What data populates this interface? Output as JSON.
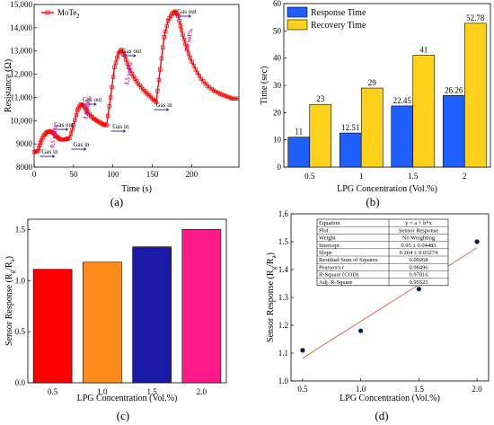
{
  "panel_labels": [
    "(a)",
    "(b)",
    "(c)",
    "(d)"
  ],
  "chart_data": [
    {
      "id": "a",
      "type": "line",
      "xlabel": "Time (s)",
      "ylabel": "Resistance (Ω)",
      "xlim": [
        0,
        260
      ],
      "ylim": [
        8000,
        15000
      ],
      "xticks": [
        "0",
        "50",
        "100",
        "150",
        "200"
      ],
      "yticks": [
        "8000",
        "9000",
        "10,000",
        "11,000",
        "12,000",
        "13,000",
        "14,000",
        "15,000"
      ],
      "legend": "MoTe",
      "legend_sub": "2",
      "series_color": "#ff0000",
      "gas_in_label": "Gas in",
      "gas_out_label": "Gas out",
      "concentration_labels": [
        "0.5 vol%",
        "1.0 vol%",
        "1.5 vol%",
        "2.0 vol%"
      ],
      "concentration_color": "#cc0099",
      "x": [
        0,
        5,
        8,
        12,
        16,
        20,
        24,
        28,
        32,
        36,
        40,
        45,
        50,
        55,
        59,
        63,
        67,
        72,
        77,
        82,
        87,
        92,
        97,
        102,
        107,
        111,
        115,
        120,
        126,
        132,
        138,
        144,
        150,
        155,
        160,
        165,
        170,
        175,
        179,
        183,
        187,
        192,
        198,
        205,
        212,
        220,
        228,
        236,
        244,
        252,
        260
      ],
      "y": [
        8650,
        8700,
        9050,
        9350,
        9500,
        9550,
        9480,
        9320,
        9220,
        9180,
        9200,
        9250,
        9800,
        10450,
        10700,
        10650,
        10400,
        10200,
        10050,
        9950,
        9850,
        9800,
        11000,
        12300,
        12900,
        13050,
        12800,
        12300,
        11900,
        11600,
        11350,
        11150,
        10950,
        10800,
        12200,
        13600,
        14300,
        14600,
        14700,
        14500,
        13900,
        13300,
        12700,
        12200,
        11800,
        11500,
        11300,
        11150,
        11050,
        10950,
        10950
      ],
      "gas_in_times": [
        5,
        45,
        95,
        150
      ],
      "gas_out_times": [
        22,
        58,
        108,
        178
      ]
    },
    {
      "id": "b",
      "type": "bar",
      "categories": [
        "0.5",
        "1",
        "1.5",
        "2"
      ],
      "xlabel": "LPG Concentration (Vol.%)",
      "ylabel": "Time (sec)",
      "ylim": [
        0,
        60
      ],
      "yticks": [
        "0",
        "10",
        "20",
        "30",
        "40",
        "50",
        "60"
      ],
      "legend_position": "top-left",
      "series": [
        {
          "name": "Response Time",
          "color": "#1f5fff",
          "values": [
            11,
            12.51,
            22.45,
            26.26
          ],
          "labels": [
            "11",
            "12.51",
            "22.45",
            "26.26"
          ]
        },
        {
          "name": "Recovery Time",
          "color": "#ffd11a",
          "values": [
            23,
            29,
            41,
            52.78
          ],
          "labels": [
            "23",
            "29",
            "41",
            "52.78"
          ]
        }
      ]
    },
    {
      "id": "c",
      "type": "bar",
      "categories": [
        "0.5",
        "1.0",
        "1.5",
        "2.0"
      ],
      "values": [
        1.11,
        1.18,
        1.33,
        1.5
      ],
      "colors": [
        "#ff0000",
        "#ff8c1a",
        "#1a1aa6",
        "#ff1a8c"
      ],
      "xlabel": "LPG Concentration (Vol.%)",
      "ylabel": "Sensor Response (R",
      "ylabel_sub1": "g",
      "ylabel_mid": "/R",
      "ylabel_sub2": "a",
      "ylabel_end": ")",
      "ylim": [
        0,
        1.6
      ],
      "yticks": [
        "0.0",
        "0.5",
        "1.0",
        "1.5"
      ]
    },
    {
      "id": "d",
      "type": "scatter",
      "x": [
        0.5,
        1.0,
        1.5,
        2.0
      ],
      "y": [
        1.11,
        1.18,
        1.33,
        1.5
      ],
      "fit": {
        "intercept": 0.95,
        "slope": 0.264,
        "color": "#e05a47"
      },
      "xlim": [
        0.4,
        2.1
      ],
      "ylim": [
        1.0,
        1.6
      ],
      "xticks": [
        "0.5",
        "1.0",
        "1.5",
        "2.0"
      ],
      "yticks": [
        "1.0",
        "1.1",
        "1.2",
        "1.3",
        "1.4",
        "1.5",
        "1.6"
      ],
      "xlabel": "LPG Concentration (Vol.%)",
      "ylabel": "Sensor Response (R",
      "ylabel_sub1": "g",
      "ylabel_mid": "/R",
      "ylabel_sub2": "a",
      "ylabel_end": ")",
      "fit_table": [
        [
          "Equation",
          "y = a + b*x"
        ],
        [
          "Plot",
          "Sensor Response"
        ],
        [
          "Weight",
          "No Weighting"
        ],
        [
          "Intercept",
          "0.95 ± 0.04483"
        ],
        [
          "Slope",
          "0.264 ± 0.03274"
        ],
        [
          "Residual Sum of Squares",
          "0.00268"
        ],
        [
          "Pearson's r",
          "0.98496"
        ],
        [
          "R-Square (COD)",
          "0.97016"
        ],
        [
          "Adj. R-Square",
          "0.95523"
        ]
      ]
    }
  ]
}
